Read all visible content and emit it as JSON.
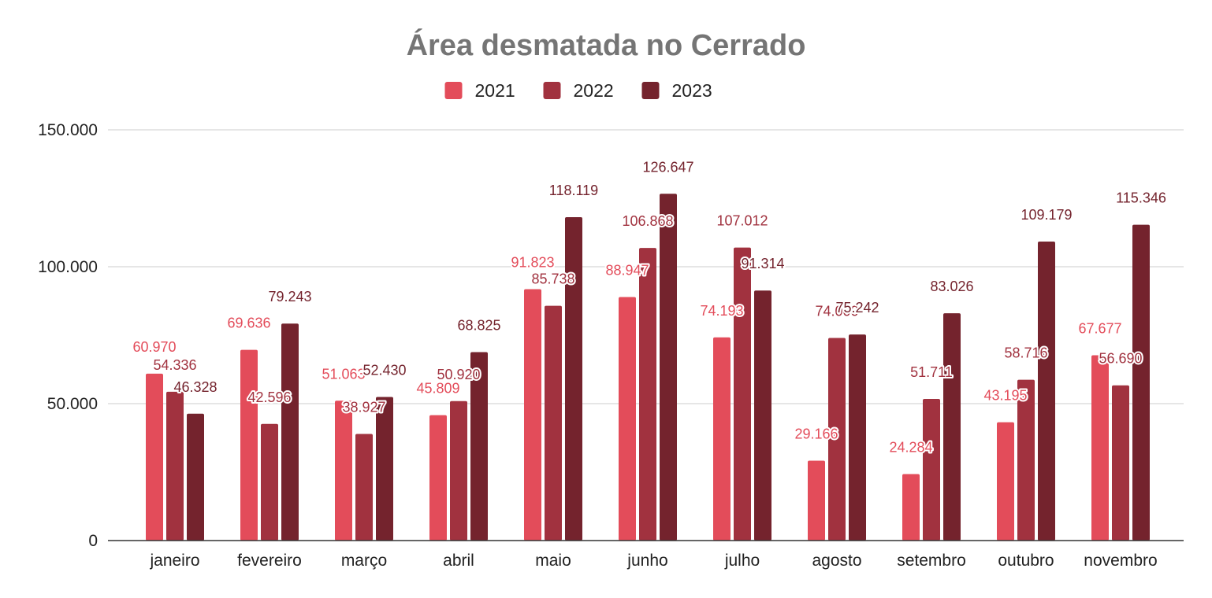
{
  "chart_data": {
    "type": "bar",
    "title": "Área desmatada no Cerrado",
    "xlabel": "",
    "ylabel": "",
    "ylim": [
      0,
      150000
    ],
    "yticks": [
      0,
      50000,
      100000,
      150000
    ],
    "ytick_labels": [
      "0",
      "50.000",
      "100.000",
      "150.000"
    ],
    "grid": true,
    "legend_position": "top-center",
    "categories": [
      "janeiro",
      "fevereiro",
      "março",
      "abril",
      "maio",
      "junho",
      "julho",
      "agosto",
      "setembro",
      "outubro",
      "novembro"
    ],
    "series": [
      {
        "name": "2021",
        "color": "#e34c5a",
        "values": [
          60970,
          69636,
          51063,
          45809,
          91823,
          88947,
          74193,
          29166,
          24284,
          43195,
          67677
        ],
        "labels": [
          "60.970",
          "69.636",
          "51.063",
          "45.809",
          "91.823",
          "88.947",
          "74.193",
          "29.166",
          "24.284",
          "43.195",
          "67.677"
        ]
      },
      {
        "name": "2022",
        "color": "#a1323f",
        "values": [
          54336,
          42596,
          38927,
          50920,
          85738,
          106868,
          107012,
          74000,
          51711,
          58716,
          56690
        ],
        "labels": [
          "54.336",
          "42.596",
          "38.927",
          "50.920",
          "85.738",
          "106.868",
          "107.012",
          "74.000",
          "51.711",
          "58.716",
          "56.690"
        ]
      },
      {
        "name": "2023",
        "color": "#74232d",
        "values": [
          46328,
          79243,
          52430,
          68825,
          118119,
          126647,
          91314,
          75242,
          83026,
          109179,
          115346
        ],
        "labels": [
          "46.328",
          "79.243",
          "52.430",
          "68.825",
          "118.119",
          "126.647",
          "91.314",
          "75.242",
          "83.026",
          "109.179",
          "115.346"
        ]
      }
    ]
  }
}
